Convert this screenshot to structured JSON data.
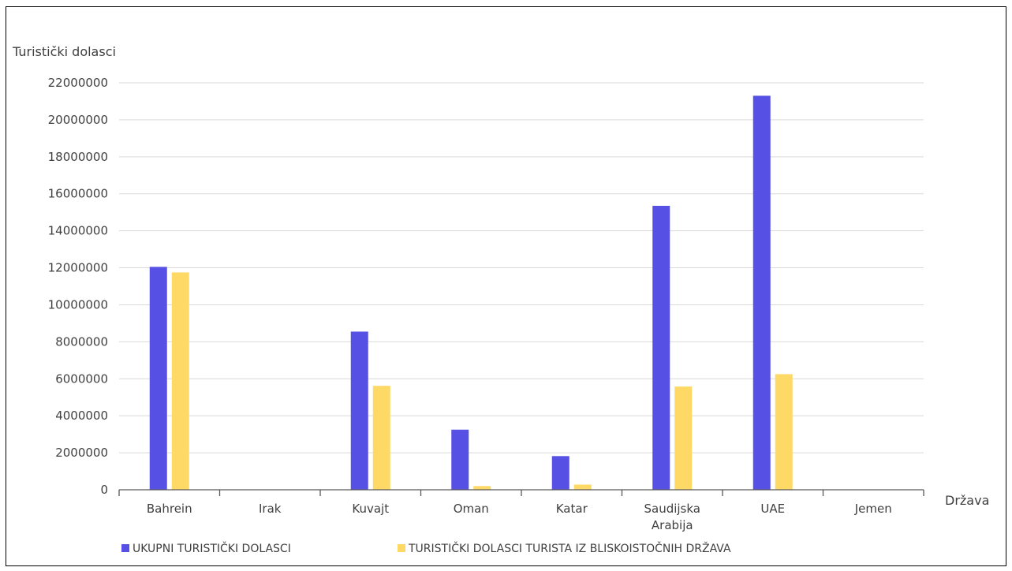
{
  "chart_data": {
    "type": "bar",
    "ylabel": "Turistički dolasci",
    "xlabel": "Država",
    "categories": [
      [
        "Bahrein"
      ],
      [
        "Irak"
      ],
      [
        "Kuvajt"
      ],
      [
        "Oman"
      ],
      [
        "Katar"
      ],
      [
        "Saudijska",
        "Arabija"
      ],
      [
        "UAE"
      ],
      [
        "Jemen"
      ]
    ],
    "ylim": [
      0,
      22000000
    ],
    "ytick_step": 2000000,
    "ytick_labels": [
      "0",
      "2000000",
      "4000000",
      "6000000",
      "8000000",
      "10000000",
      "12000000",
      "14000000",
      "16000000",
      "18000000",
      "20000000",
      "22000000"
    ],
    "grid": true,
    "legend_position": "bottom",
    "series": [
      {
        "name": "UKUPNI TURISTIČKI DOLASCI",
        "color": "#5650e4",
        "values": [
          12050000,
          0,
          8550000,
          3250000,
          1820000,
          15350000,
          21300000,
          0
        ]
      },
      {
        "name": "TURISTIČKI DOLASCI TURISTA IZ BLISKOISTOČNIH DRŽAVA",
        "color": "#ffd966",
        "values": [
          11750000,
          0,
          5620000,
          200000,
          280000,
          5580000,
          6250000,
          0
        ]
      }
    ]
  }
}
